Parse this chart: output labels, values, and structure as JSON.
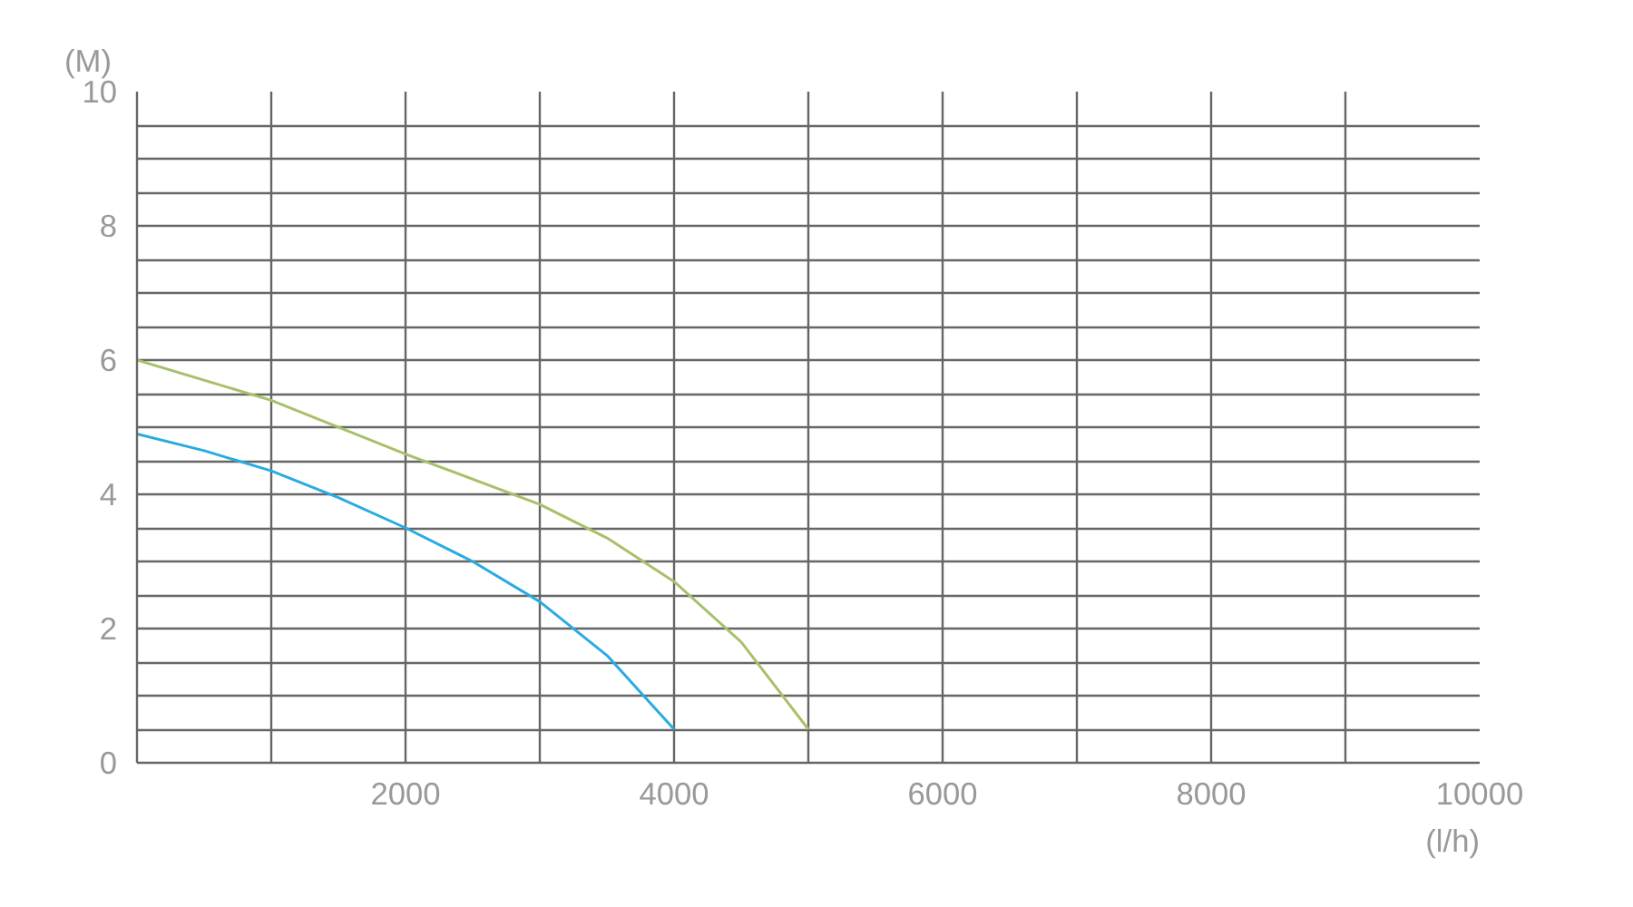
{
  "chart_data": {
    "type": "line",
    "xlabel": "(l/h)",
    "ylabel": "(M)",
    "series": [
      {
        "color": "#29abe2",
        "x": [
          0,
          500,
          1000,
          1500,
          2000,
          2500,
          3000,
          3500,
          4000
        ],
        "values": [
          4.9,
          4.65,
          4.35,
          3.95,
          3.5,
          3.0,
          2.4,
          1.6,
          0.5
        ]
      },
      {
        "color": "#a8c06a",
        "x": [
          0,
          1000,
          2000,
          3000,
          3500,
          4000,
          4500,
          5000
        ],
        "values": [
          6.0,
          5.4,
          4.6,
          3.85,
          3.35,
          2.7,
          1.8,
          0.5
        ]
      }
    ],
    "xlim": [
      0,
      10000
    ],
    "ylim": [
      0,
      10
    ],
    "xticks": [
      {
        "value": 0,
        "label": null
      },
      {
        "value": 1000,
        "label": null
      },
      2000,
      {
        "value": 3000,
        "label": null
      },
      4000,
      {
        "value": 5000,
        "label": null
      },
      6000,
      {
        "value": 7000,
        "label": null
      },
      8000,
      {
        "value": 9000,
        "label": null
      },
      10000
    ],
    "yticks": [
      0,
      {
        "value": 0.5,
        "label": null
      },
      {
        "value": 1,
        "label": null
      },
      {
        "value": 1.5,
        "label": null
      },
      2,
      {
        "value": 2.5,
        "label": null
      },
      {
        "value": 3,
        "label": null
      },
      {
        "value": 3.5,
        "label": null
      },
      4,
      {
        "value": 4.5,
        "label": null
      },
      {
        "value": 5,
        "label": null
      },
      {
        "value": 5.5,
        "label": null
      },
      6,
      {
        "value": 6.5,
        "label": null
      },
      {
        "value": 7,
        "label": null
      },
      {
        "value": 7.5,
        "label": null
      },
      8,
      {
        "value": 8.5,
        "label": null
      },
      {
        "value": 9,
        "label": null
      },
      {
        "value": 9.5,
        "label": null
      },
      10
    ],
    "grid": true,
    "marker": "none",
    "line_style": "solid"
  }
}
